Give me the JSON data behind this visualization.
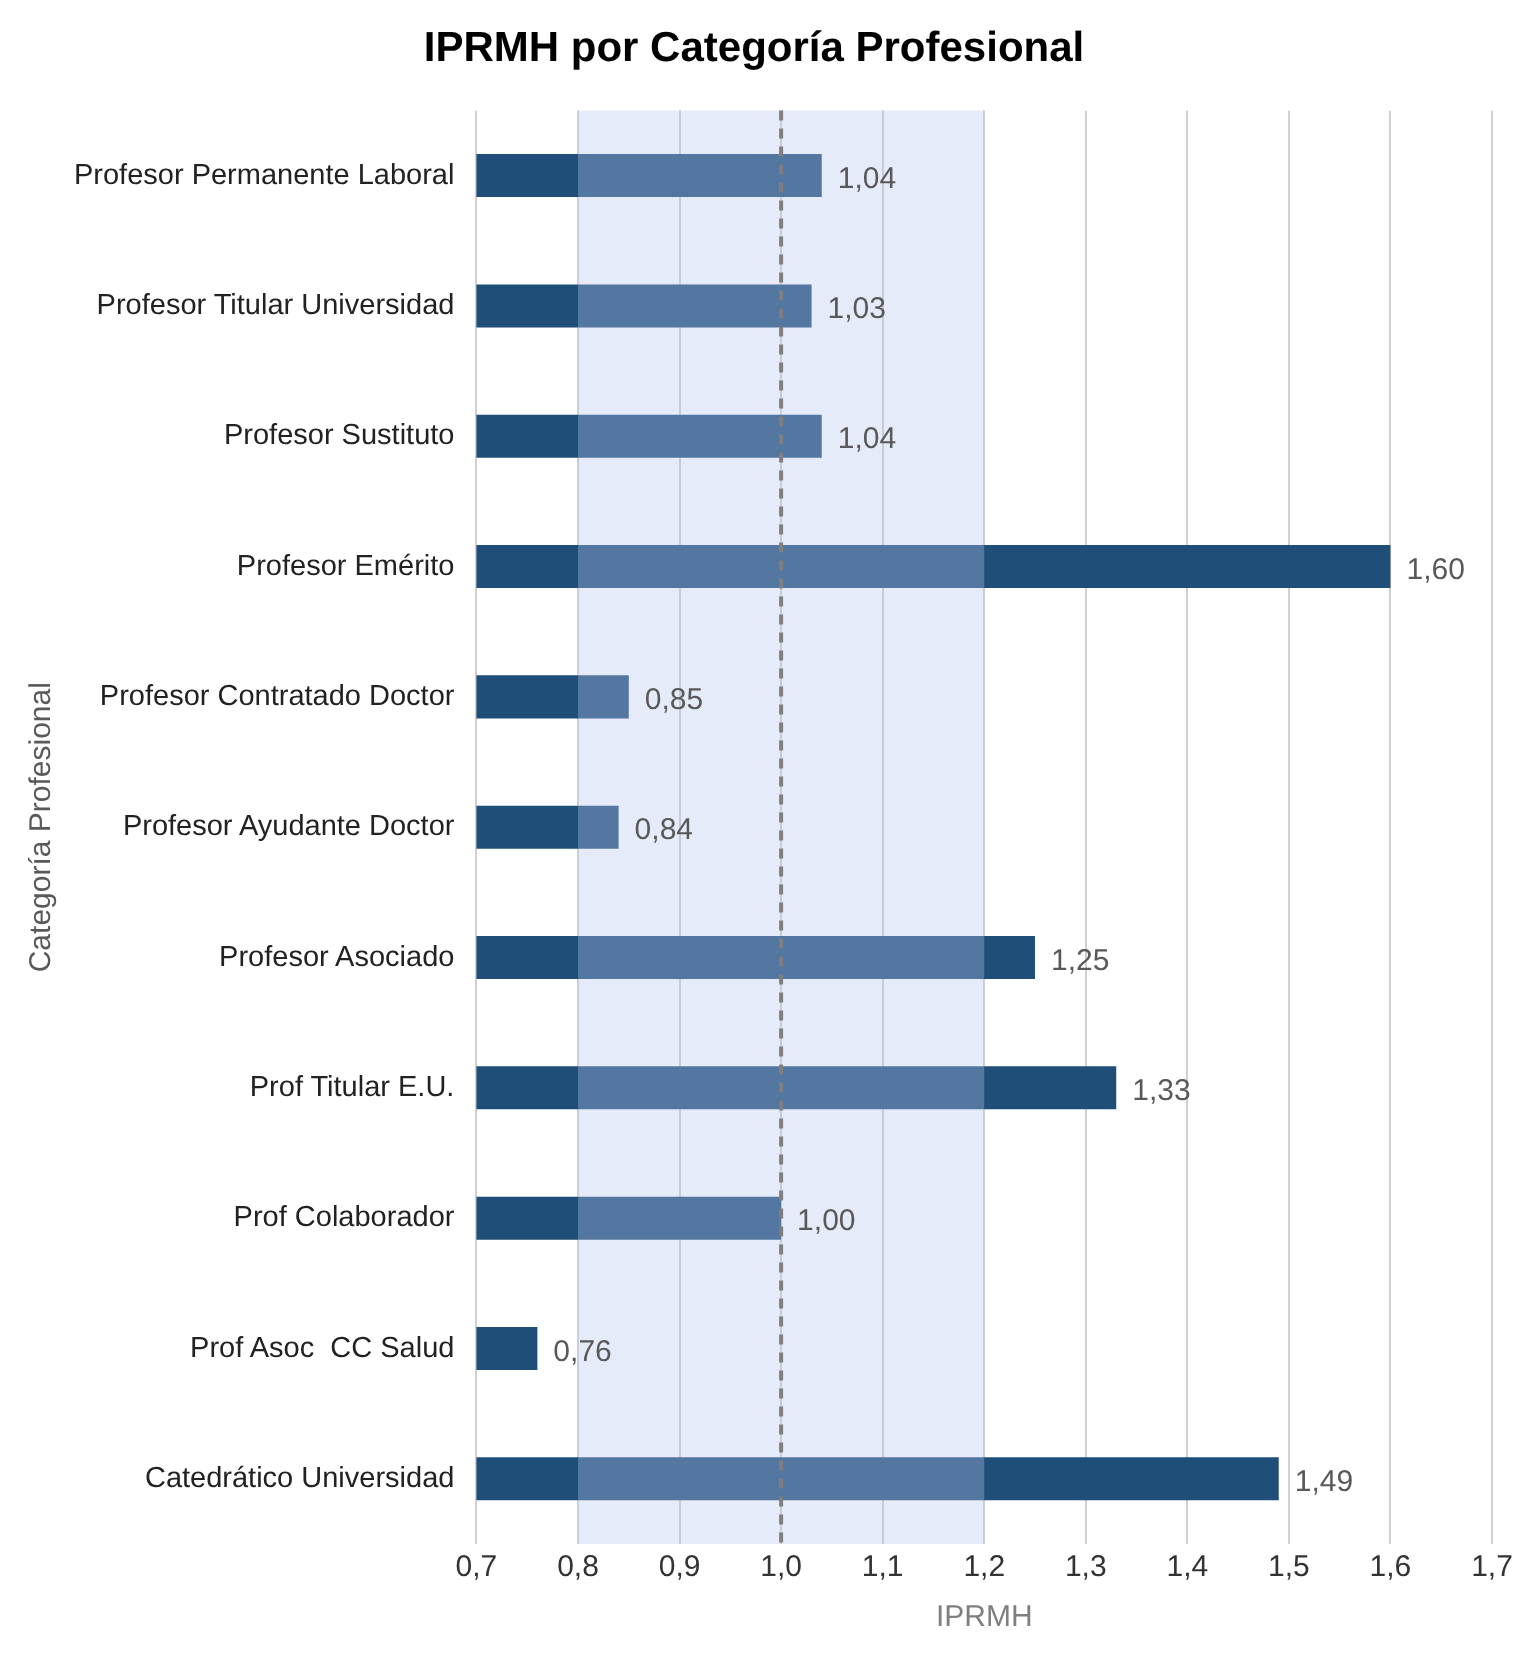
{
  "chart_data": {
    "type": "bar",
    "orientation": "horizontal",
    "title": "IPRMH por Categoría Profesional",
    "xlabel": "IPRMH",
    "ylabel": "Categoría Profesional",
    "categories": [
      "Profesor Permanente Laboral",
      "Profesor Titular Universidad",
      "Profesor Sustituto",
      "Profesor Emérito",
      "Profesor Contratado Doctor",
      "Profesor Ayudante Doctor",
      "Profesor Asociado",
      "Prof Titular E.U.",
      "Prof Colaborador",
      "Prof Asoc  CC Salud",
      "Catedrático Universidad"
    ],
    "values": [
      1.04,
      1.03,
      1.04,
      1.6,
      0.85,
      0.84,
      1.25,
      1.33,
      1.0,
      0.76,
      1.49
    ],
    "value_labels": [
      "1,04",
      "1,03",
      "1,04",
      "1,60",
      "0,85",
      "0,84",
      "1,25",
      "1,33",
      "1,00",
      "0,76",
      "1,49"
    ],
    "color": "#1f4e79",
    "xlim": [
      0.7,
      1.7
    ],
    "xticks": [
      {
        "value": 0.7,
        "label": "0,7"
      },
      {
        "value": 0.8,
        "label": "0,8"
      },
      {
        "value": 0.9,
        "label": "0,9"
      },
      {
        "value": 1.0,
        "label": "1,0"
      },
      {
        "value": 1.1,
        "label": "1,1"
      },
      {
        "value": 1.2,
        "label": "1,2"
      },
      {
        "value": 1.3,
        "label": "1,3"
      },
      {
        "value": 1.4,
        "label": "1,4"
      },
      {
        "value": 1.5,
        "label": "1,5"
      },
      {
        "value": 1.6,
        "label": "1,6"
      },
      {
        "value": 1.7,
        "label": "1,7"
      }
    ],
    "grid": "x",
    "ref_lines": [
      {
        "axis": "x",
        "value": 1.0,
        "color": "#7f7f7f",
        "line_style": "dashed"
      }
    ],
    "bands": [
      {
        "axis": "x",
        "from": 0.8,
        "to": 1.2,
        "color": "#b4c6ea"
      }
    ]
  }
}
